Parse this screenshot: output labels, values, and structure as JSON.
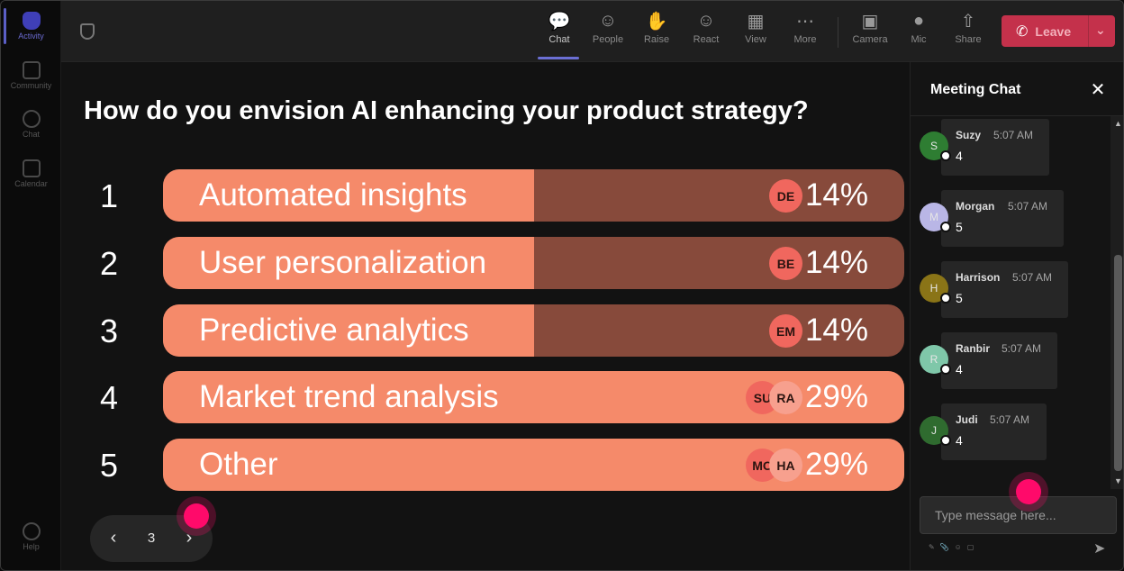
{
  "rail": {
    "items": [
      {
        "label": "Activity"
      },
      {
        "label": "Community"
      },
      {
        "label": "Chat"
      },
      {
        "label": "Calendar"
      }
    ],
    "help": "Help"
  },
  "toolbar": {
    "buttons": [
      {
        "label": "Chat",
        "icon": "chat-icon"
      },
      {
        "label": "People",
        "icon": "people-icon"
      },
      {
        "label": "Raise",
        "icon": "raise-hand-icon"
      },
      {
        "label": "React",
        "icon": "react-icon"
      },
      {
        "label": "View",
        "icon": "view-icon"
      },
      {
        "label": "More",
        "icon": "more-icon"
      },
      {
        "label": "Camera",
        "icon": "camera-icon"
      },
      {
        "label": "Mic",
        "icon": "mic-icon"
      },
      {
        "label": "Share",
        "icon": "share-icon"
      }
    ],
    "leave_label": "Leave"
  },
  "poll": {
    "question": "How do you envision AI enhancing your product strategy?",
    "options": [
      {
        "num": "1",
        "label": "Automated insights",
        "percent": "14%",
        "fraction": 0.5,
        "avatars": [
          "DE"
        ]
      },
      {
        "num": "2",
        "label": "User personalization",
        "percent": "14%",
        "fraction": 0.5,
        "avatars": [
          "BE"
        ]
      },
      {
        "num": "3",
        "label": "Predictive analytics",
        "percent": "14%",
        "fraction": 0.5,
        "avatars": [
          "EM"
        ]
      },
      {
        "num": "4",
        "label": "Market trend analysis",
        "percent": "29%",
        "fraction": 1.0,
        "avatars": [
          "SU",
          "RA"
        ]
      },
      {
        "num": "5",
        "label": "Other",
        "percent": "29%",
        "fraction": 1.0,
        "avatars": [
          "MO",
          "HA"
        ]
      }
    ],
    "page": "3"
  },
  "chat": {
    "title": "Meeting Chat",
    "messages": [
      {
        "name": "Suzy",
        "initial": "S",
        "time": "5:07 AM",
        "text": "4",
        "color": "#2e7d32"
      },
      {
        "name": "Morgan",
        "initial": "M",
        "time": "5:07 AM",
        "text": "5",
        "color": "#b9b6e6"
      },
      {
        "name": "Harrison",
        "initial": "H",
        "time": "5:07 AM",
        "text": "5",
        "color": "#8a7417"
      },
      {
        "name": "Ranbir",
        "initial": "R",
        "time": "5:07 AM",
        "text": "4",
        "color": "#7fc7a9"
      },
      {
        "name": "Judi",
        "initial": "J",
        "time": "5:07 AM",
        "text": "4",
        "color": "#2f6b2f"
      }
    ],
    "input_placeholder": "Type message here..."
  },
  "colors": {
    "bar_fill": "#f58a6a",
    "bar_track": "#874a3b",
    "leave": "#c4314b",
    "accent": "#5b5fc7",
    "cursor": "#ff0a6a"
  }
}
